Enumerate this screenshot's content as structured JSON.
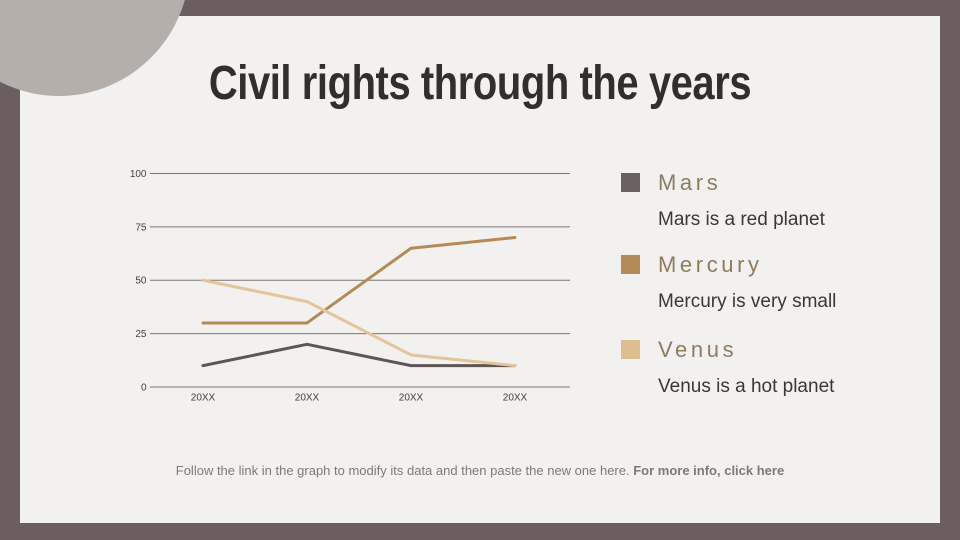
{
  "slide": {
    "title": "Civil rights through the years",
    "colors": {
      "frame": "#6a5f5e",
      "background": "#f2f1f0",
      "ellipse": "#b5afac",
      "title": "#312e2d"
    }
  },
  "chart_data": {
    "type": "line",
    "categories": [
      "20XX",
      "20XX",
      "20XX",
      "20XX"
    ],
    "series": [
      {
        "name": "Mars",
        "color": "#5e5555",
        "values": [
          10,
          20,
          10,
          10
        ]
      },
      {
        "name": "Mercury",
        "color": "#b48a56",
        "values": [
          30,
          30,
          65,
          70
        ]
      },
      {
        "name": "Venus",
        "color": "#e4c49b",
        "values": [
          50,
          40,
          15,
          10
        ]
      }
    ],
    "title": "",
    "xlabel": "",
    "ylabel": "",
    "ylim": [
      0,
      100
    ],
    "yticks": [
      0,
      25,
      50,
      75,
      100
    ],
    "grid": true,
    "gridline_color": "#7c7674",
    "tick_label_color": "#444040",
    "legend_position": "right"
  },
  "legend": {
    "name_color": "#8f7c60",
    "description_color": "#3b3737",
    "items": [
      {
        "name": "Mars",
        "swatch_color": "#6a6060",
        "description": "Mars is a red planet"
      },
      {
        "name": "Mercury",
        "swatch_color": "#b48a56",
        "description": "Mercury is very small"
      },
      {
        "name": "Venus",
        "swatch_color": "#debd90",
        "description": "Venus is a hot planet"
      }
    ]
  },
  "footer": {
    "text": "Follow the link in the graph to modify its data and then paste the new one here. ",
    "link_text": "For more info, click here",
    "color": "#7e7975"
  }
}
